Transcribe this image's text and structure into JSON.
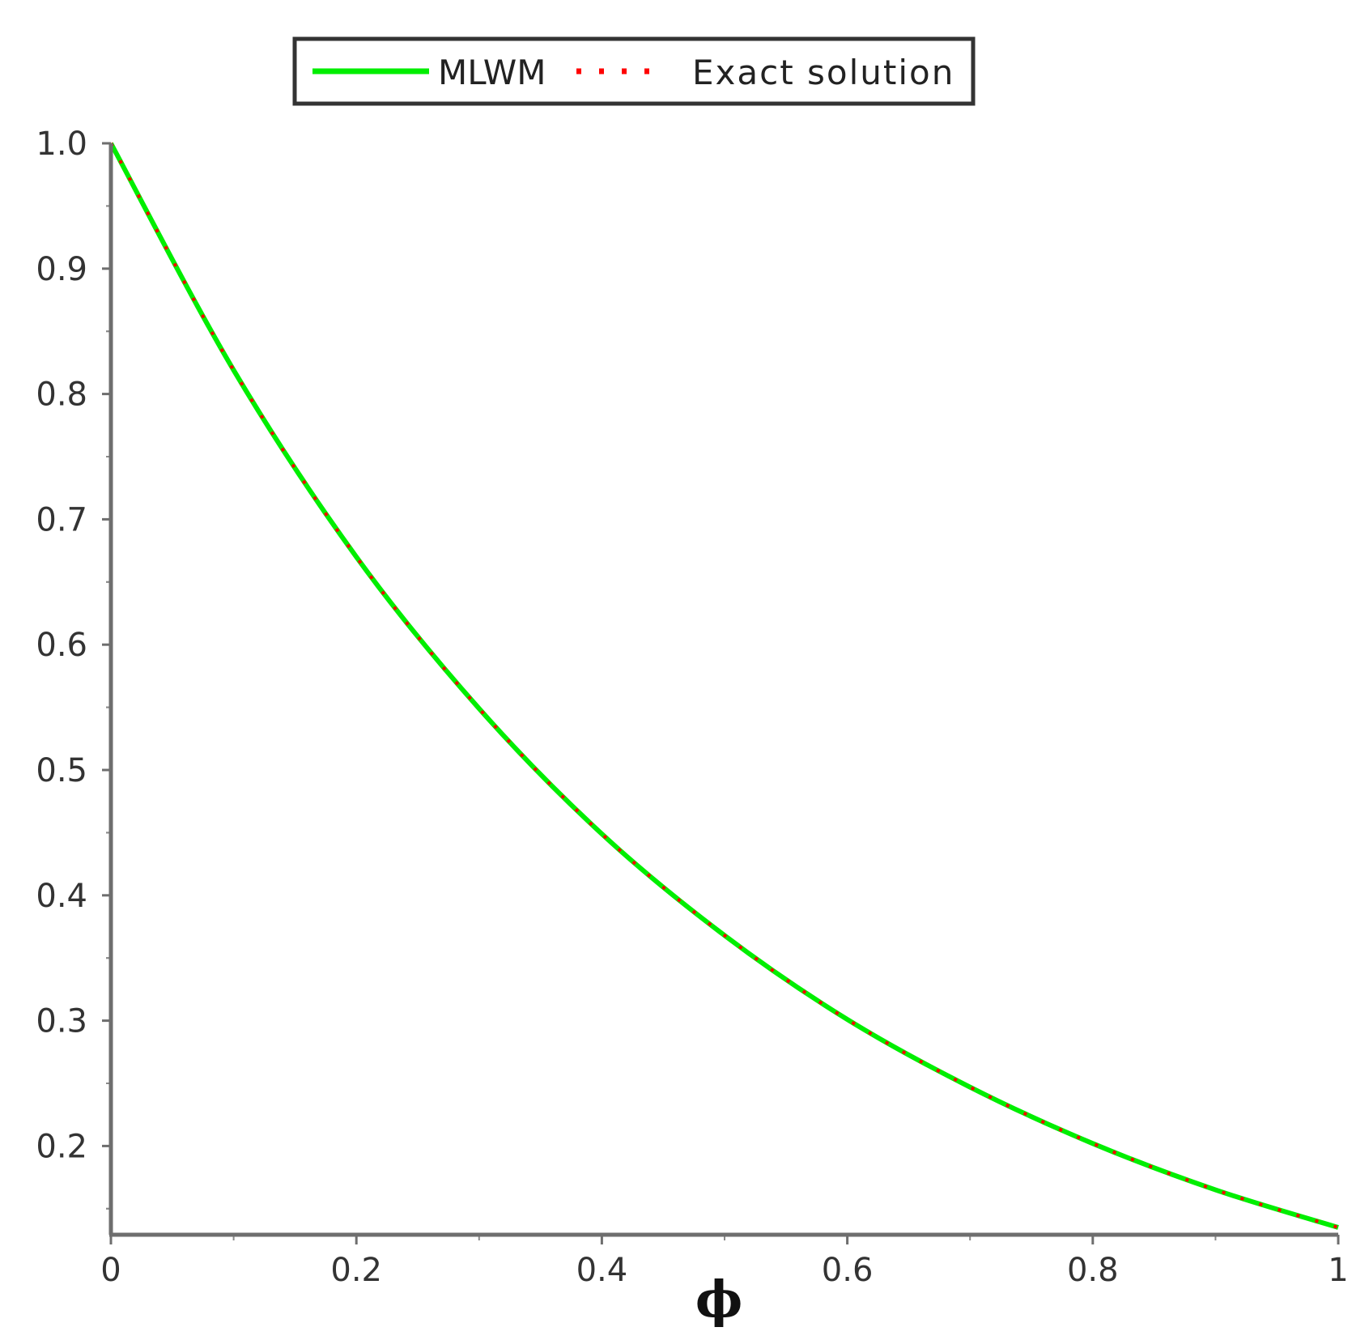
{
  "chart_data": {
    "type": "line",
    "title": "",
    "xlabel": "ϕ",
    "ylabel": "",
    "xlim": [
      0,
      1
    ],
    "ylim": [
      0.135,
      1.0
    ],
    "xticks": [
      0,
      0.2,
      0.4,
      0.6,
      0.8,
      1
    ],
    "xtick_labels": [
      "0",
      "0.2",
      "0.4",
      "0.6",
      "0.8",
      "1"
    ],
    "yticks": [
      0.2,
      0.3,
      0.4,
      0.5,
      0.6,
      0.7,
      0.8,
      0.9,
      1.0
    ],
    "ytick_labels": [
      "0.2",
      "0.3",
      "0.4",
      "0.5",
      "0.6",
      "0.7",
      "0.8",
      "0.9",
      "1.0"
    ],
    "grid": false,
    "legend_position": "top-center",
    "series": [
      {
        "name": "MLWM",
        "style": "solid",
        "color": "#00ee00",
        "x": [
          0,
          0.1,
          0.2,
          0.3,
          0.4,
          0.5,
          0.6,
          0.7,
          0.8,
          0.9,
          1.0
        ],
        "y": [
          1.0,
          0.819,
          0.67,
          0.549,
          0.449,
          0.368,
          0.301,
          0.247,
          0.202,
          0.165,
          0.135
        ]
      },
      {
        "name": "Exact solution",
        "style": "dotted",
        "color": "#ff0000",
        "x": [
          0,
          0.1,
          0.2,
          0.3,
          0.4,
          0.5,
          0.6,
          0.7,
          0.8,
          0.9,
          1.0
        ],
        "y": [
          1.0,
          0.819,
          0.67,
          0.549,
          0.449,
          0.368,
          0.301,
          0.247,
          0.202,
          0.165,
          0.135
        ]
      }
    ]
  }
}
